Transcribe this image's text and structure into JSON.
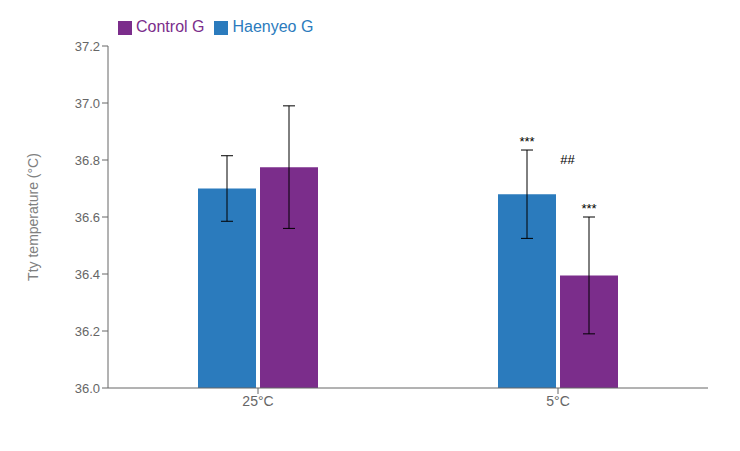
{
  "chart_data": {
    "type": "bar",
    "categories": [
      "25°C",
      "5°C"
    ],
    "series": [
      {
        "name": "Haenyeo G",
        "color": "#2B7BBD",
        "values": [
          36.7,
          36.68
        ],
        "errors": [
          0.115,
          0.155
        ]
      },
      {
        "name": "Control G",
        "color": "#7B2D8B",
        "values": [
          36.775,
          36.395
        ],
        "errors": [
          0.215,
          0.205
        ]
      }
    ],
    "ylabel": "Tty temperature (°C)",
    "ylim": [
      36.0,
      37.2
    ],
    "yticks": [
      {
        "value": 36.0,
        "label": "36.0"
      },
      36.2,
      36.4,
      36.6,
      36.8,
      {
        "value": 37.0,
        "label": "37.0"
      },
      37.2
    ],
    "annotations": [
      {
        "text": "***",
        "category": "5°C",
        "series": "Haenyeo G"
      },
      {
        "text": "##",
        "category": "5°C"
      },
      {
        "text": "***",
        "category": "5°C",
        "series": "Control G"
      }
    ],
    "legend": "upper left",
    "grid": false
  }
}
